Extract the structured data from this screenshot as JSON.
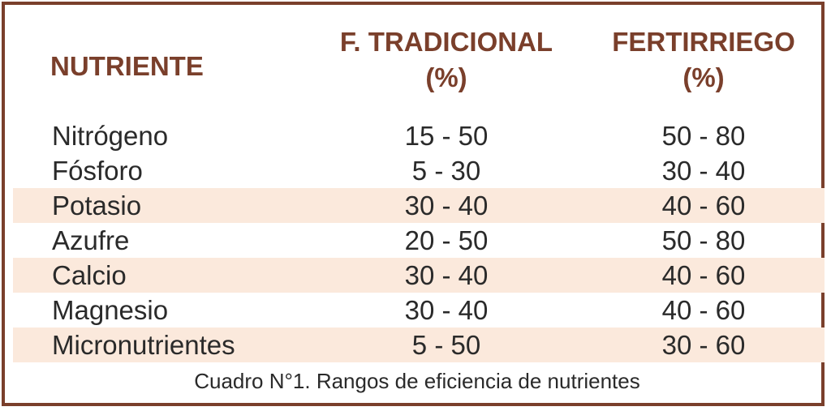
{
  "headers": {
    "nutriente": "NUTRIENTE",
    "col1_line1": "F. TRADICIONAL",
    "col1_line2": "(%)",
    "col2_line1": "FERTIRRIEGO",
    "col2_line2": "(%)"
  },
  "rows": [
    {
      "nutriente": "Nitrógeno",
      "tradicional": "15 - 50",
      "fertirriego": "50 - 80"
    },
    {
      "nutriente": "Fósforo",
      "tradicional": "5 - 30",
      "fertirriego": "30 - 40"
    },
    {
      "nutriente": "Potasio",
      "tradicional": "30 - 40",
      "fertirriego": "40 - 60"
    },
    {
      "nutriente": "Azufre",
      "tradicional": "20 - 50",
      "fertirriego": "50 - 80"
    },
    {
      "nutriente": "Calcio",
      "tradicional": "30 - 40",
      "fertirriego": "40 - 60"
    },
    {
      "nutriente": "Magnesio",
      "tradicional": "30 - 40",
      "fertirriego": "40 - 60"
    },
    {
      "nutriente": "Micronutrientes",
      "tradicional": "5 - 50",
      "fertirriego": "30 - 60"
    }
  ],
  "caption": "Cuadro N°1. Rangos de eficiencia de nutrientes",
  "colors": {
    "border": "#7a3f2b",
    "header_text": "#7a3f2b",
    "shade": "#fbe9dc"
  }
}
